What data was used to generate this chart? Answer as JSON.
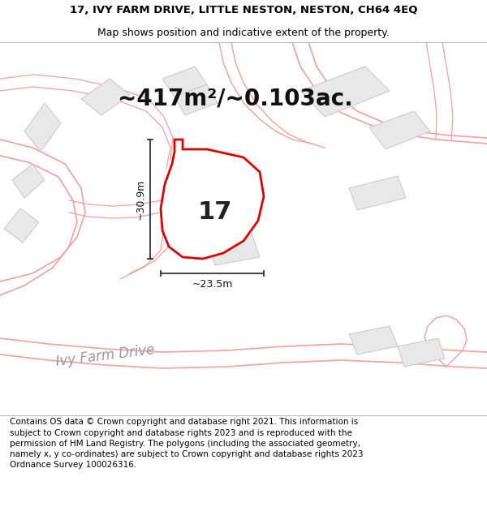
{
  "title_line1": "17, IVY FARM DRIVE, LITTLE NESTON, NESTON, CH64 4EQ",
  "title_line2": "Map shows position and indicative extent of the property.",
  "area_text": "~417m²/~0.103ac.",
  "number_label": "17",
  "dim_horizontal": "~23.5m",
  "dim_vertical": "~30.9m",
  "street_label": "Ivy Farm Drive",
  "footer_text": "Contains OS data © Crown copyright and database right 2021. This information is subject to Crown copyright and database rights 2023 and is reproduced with the permission of HM Land Registry. The polygons (including the associated geometry, namely x, y co-ordinates) are subject to Crown copyright and database rights 2023 Ordnance Survey 100026316.",
  "bg_color": "#ffffff",
  "map_bg_color": "#ffffff",
  "property_fill": "#ffffff",
  "property_edge": "#dd0000",
  "road_line_color": "#f0a0a0",
  "building_fill": "#e8e8e8",
  "building_edge": "#c8c8c8",
  "dim_line_color": "#333333",
  "title_fontsize": 9.5,
  "subtitle_fontsize": 9,
  "area_fontsize": 20,
  "number_fontsize": 22,
  "dim_fontsize": 9,
  "street_fontsize": 12,
  "footer_fontsize": 7.5
}
